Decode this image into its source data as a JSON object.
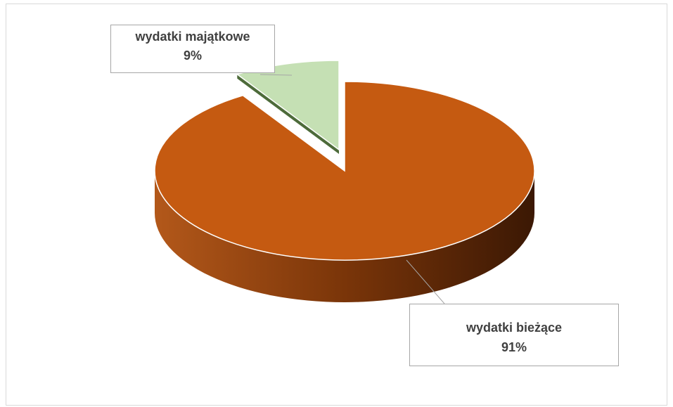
{
  "chart_data": {
    "type": "pie",
    "categories": [
      "wydatki majątkowe",
      "wydatki bieżące"
    ],
    "values": [
      9,
      91
    ],
    "value_labels": [
      "9%",
      "91%"
    ],
    "colors": [
      "#c5e0b4",
      "#c55a11"
    ]
  }
}
